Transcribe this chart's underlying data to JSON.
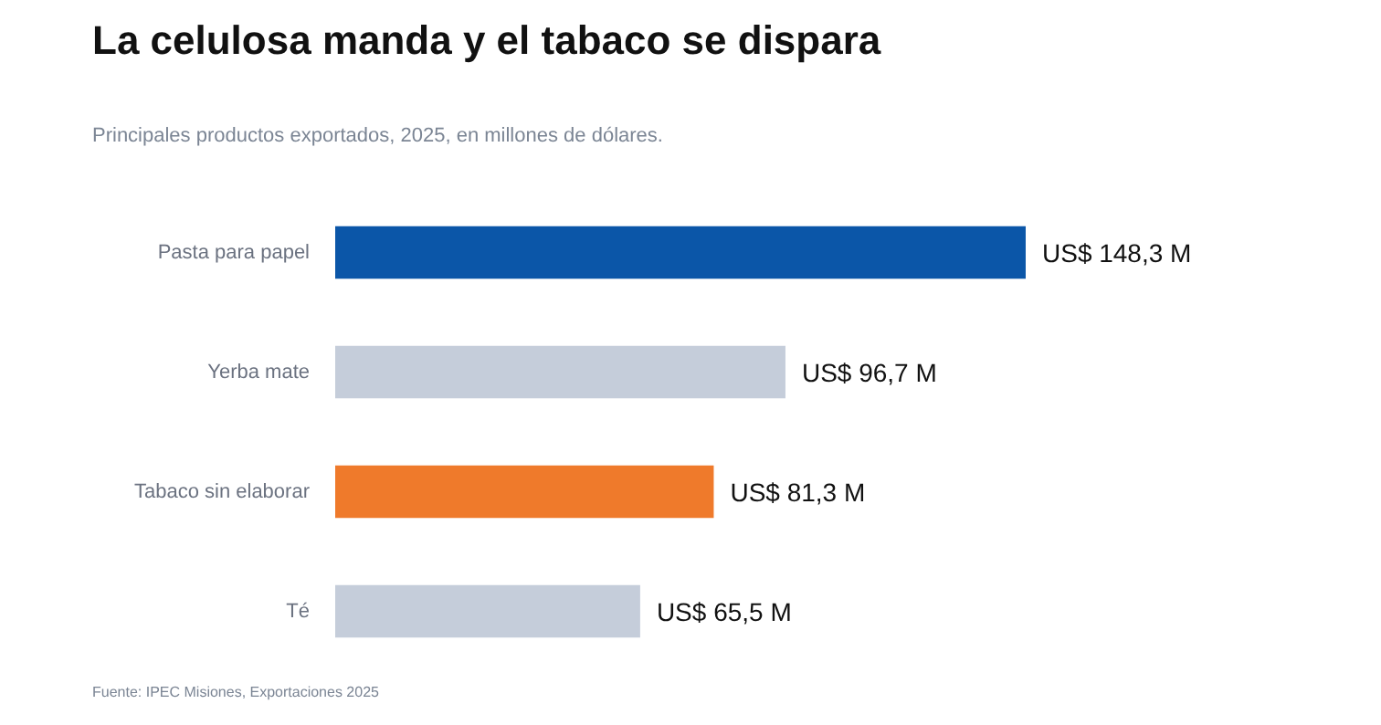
{
  "chart_data": {
    "type": "bar",
    "orientation": "horizontal",
    "title": "La celulosa manda y el tabaco se dispara",
    "subtitle": "Principales productos exportados, 2025, en millones de dólares.",
    "categories": [
      "Pasta para papel",
      "Yerba mate",
      "Tabaco sin elaborar",
      "Té"
    ],
    "values": [
      148.3,
      96.7,
      81.3,
      65.5
    ],
    "colors": [
      "#0b56a8",
      "#c5cdda",
      "#ef7a2b",
      "#c5cdda"
    ],
    "value_labels": [
      "US$ 148,3 M",
      "US$ 96,7 M",
      "US$ 81,3 M",
      "US$ 65,5 M"
    ],
    "annotations": [
      "Fuente: IPEC Misiones, Exportaciones 2025"
    ]
  }
}
